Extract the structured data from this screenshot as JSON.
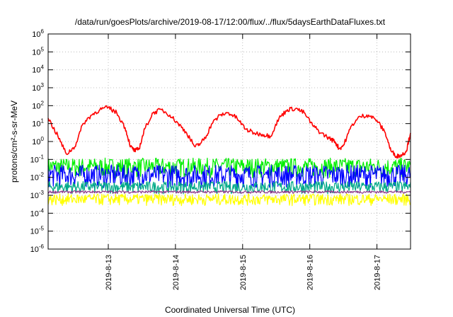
{
  "chart_data": {
    "type": "line",
    "title": "/data/run/goesPlots/archive/2019-08-17/12:00/flux/../flux/5daysEarthDataFluxes.txt",
    "xlabel": "Coordinated Universal Time (UTC)",
    "ylabel": "protons/cm²-s-sr-MeV",
    "yscale": "log",
    "ylim": [
      1e-06,
      1000000.0
    ],
    "xlim": [
      "2019-08-12T02:30",
      "2019-08-17T12:00"
    ],
    "grid": true,
    "x_tick_labels": [
      "2019-8-13",
      "2019-8-14",
      "2019-8-15",
      "2019-8-16",
      "2019-8-17"
    ],
    "x_ticks": [
      "2019-08-13T00:00",
      "2019-08-14T00:00",
      "2019-08-15T00:00",
      "2019-08-16T00:00",
      "2019-08-17T00:00"
    ],
    "y_tick_labels": [
      {
        "base": "10",
        "exp": "6"
      },
      {
        "base": "10",
        "exp": "5"
      },
      {
        "base": "10",
        "exp": "4"
      },
      {
        "base": "10",
        "exp": "3"
      },
      {
        "base": "10",
        "exp": "2"
      },
      {
        "base": "10",
        "exp": "1"
      },
      {
        "base": "10",
        "exp": "0"
      },
      {
        "base": "10",
        "exp": "-1"
      },
      {
        "base": "10",
        "exp": "-2"
      },
      {
        "base": "10",
        "exp": "-3"
      },
      {
        "base": "10",
        "exp": "-4"
      },
      {
        "base": "10",
        "exp": "-5"
      },
      {
        "base": "10",
        "exp": "-6"
      }
    ],
    "y_ticks": [
      1000000.0,
      100000.0,
      10000.0,
      1000.0,
      100.0,
      10.0,
      1.0,
      0.1,
      0.01,
      0.001,
      0.0001,
      1e-05,
      1e-06
    ],
    "series": [
      {
        "color": "#ff0000",
        "x": [
          "2019-08-12T02:30",
          "2019-08-12T06:00",
          "2019-08-12T09:00",
          "2019-08-12T12:00",
          "2019-08-12T15:00",
          "2019-08-12T18:00",
          "2019-08-12T21:00",
          "2019-08-13T00:00",
          "2019-08-13T03:00",
          "2019-08-13T06:00",
          "2019-08-13T08:00",
          "2019-08-13T09:30",
          "2019-08-13T11:00",
          "2019-08-13T13:00",
          "2019-08-13T16:00",
          "2019-08-13T19:00",
          "2019-08-13T22:00",
          "2019-08-14T01:00",
          "2019-08-14T04:00",
          "2019-08-14T07:00",
          "2019-08-14T09:00",
          "2019-08-14T11:00",
          "2019-08-14T13:00",
          "2019-08-14T16:00",
          "2019-08-14T19:00",
          "2019-08-14T22:00",
          "2019-08-15T01:00",
          "2019-08-15T04:00",
          "2019-08-15T07:00",
          "2019-08-15T10:00",
          "2019-08-15T13:00",
          "2019-08-15T16:00",
          "2019-08-15T19:00",
          "2019-08-15T22:00",
          "2019-08-16T01:00",
          "2019-08-16T04:00",
          "2019-08-16T07:00",
          "2019-08-16T09:00",
          "2019-08-16T10:30",
          "2019-08-16T12:00",
          "2019-08-16T15:00",
          "2019-08-16T18:00",
          "2019-08-16T21:00",
          "2019-08-17T00:00",
          "2019-08-17T03:00",
          "2019-08-17T05:00",
          "2019-08-17T07:00",
          "2019-08-17T09:00",
          "2019-08-17T10:30",
          "2019-08-17T12:00"
        ],
        "y": [
          20,
          2,
          0.2,
          0.5,
          10,
          30,
          60,
          80,
          40,
          6,
          0.5,
          0.3,
          0.4,
          5,
          40,
          60,
          30,
          10,
          3,
          0.5,
          0.8,
          2,
          10,
          30,
          40,
          20,
          5,
          3,
          2.5,
          2,
          20,
          60,
          70,
          40,
          8,
          3,
          1.5,
          1,
          0.4,
          0.6,
          8,
          25,
          30,
          15,
          3,
          0.3,
          0.15,
          0.18,
          0.3,
          3
        ]
      },
      {
        "color": "#00ee00",
        "y_range": [
          0.006,
          0.12
        ]
      },
      {
        "color": "#0000ff",
        "y_range": [
          0.0015,
          0.05
        ]
      },
      {
        "color": "#00aa88",
        "y_range": [
          0.0009,
          0.006
        ]
      },
      {
        "color": "#8b3a8b",
        "y_range": [
          0.0012,
          0.0018
        ]
      },
      {
        "color": "#ffff00",
        "y_range": [
          0.0002,
          0.0012
        ]
      }
    ]
  }
}
